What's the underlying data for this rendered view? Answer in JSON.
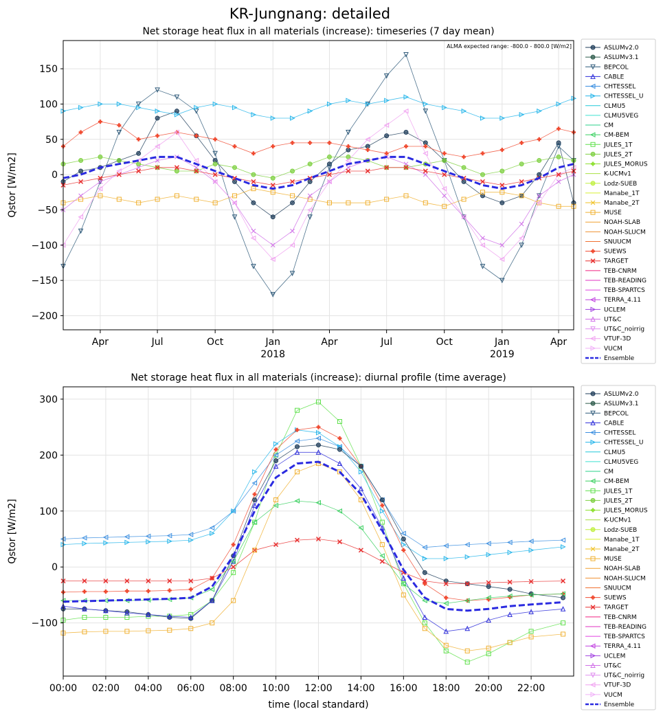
{
  "figure_title": "KR-Jungnang: detailed",
  "colors": {
    "ASLUMv2.0": "#1f3d5a",
    "ASLUMv3.1": "#2c5a4a",
    "BEPCOL": "#2f5a7a",
    "CABLE": "#2b2bd9",
    "CHTESSEL": "#3a8ee0",
    "CHTESSEL_U": "#24b5ea",
    "CLMU5": "#20c8d8",
    "CLMU5VEG": "#3de0d0",
    "CM": "#28d08a",
    "CM-BEM": "#3ad060",
    "JULES_1T": "#5ee04a",
    "JULES_2T": "#7ed040",
    "JULES_MORUS": "#8ee030",
    "K-UCMv1": "#a8e040",
    "Lodz-SUEB": "#c0f040",
    "Manabe_1T": "#d8f030",
    "Manabe_2T": "#f0c020",
    "MUSE": "#f0b030",
    "NOAH-SLAB": "#f0a030",
    "NOAH-SLUCM": "#f09030",
    "SNUUCM": "#f07030",
    "SUEWS": "#f04a30",
    "TARGET": "#e83030",
    "TEB-CNRM": "#f02080",
    "TEB-READING": "#e030c0",
    "TEB-SPARTCS": "#e040e0",
    "TERRA_4.11": "#c040e0",
    "UCLEM": "#a040e0",
    "UT&C": "#d070e8",
    "UT&C_noirrig": "#e090f0",
    "VTUF-3D": "#f0a0f0",
    "VUCM": "#f0b0f8",
    "Ensemble": "#2a2ae0"
  },
  "chart_data": [
    {
      "type": "line",
      "title": "Net storage heat flux in all materials (increase): timeseries (7 day mean)",
      "ylabel": "Qstor [W/m2]",
      "annotation": "ALMA expected range: -800.0 - 800.0 [W/m2]",
      "ylim": [
        -220,
        190
      ],
      "yticks": [
        -200,
        -150,
        -100,
        -50,
        0,
        50,
        100,
        150
      ],
      "xlim": [
        "2017-02-01",
        "2019-04-25"
      ],
      "xticks": [
        {
          "date": "2017-04-01",
          "label": "Apr",
          "sub": ""
        },
        {
          "date": "2017-07-01",
          "label": "Jul",
          "sub": ""
        },
        {
          "date": "2017-10-01",
          "label": "Oct",
          "sub": ""
        },
        {
          "date": "2018-01-01",
          "label": "Jan",
          "sub": "2018"
        },
        {
          "date": "2018-04-01",
          "label": "Apr",
          "sub": ""
        },
        {
          "date": "2018-07-01",
          "label": "Jul",
          "sub": ""
        },
        {
          "date": "2018-10-01",
          "label": "Oct",
          "sub": ""
        },
        {
          "date": "2019-01-01",
          "label": "Jan",
          "sub": "2019"
        },
        {
          "date": "2019-04-01",
          "label": "Apr",
          "sub": ""
        }
      ],
      "x_approx": [
        "2017-02-01",
        "2017-03-01",
        "2017-04-01",
        "2017-05-01",
        "2017-06-01",
        "2017-07-01",
        "2017-08-01",
        "2017-09-01",
        "2017-10-01",
        "2017-11-01",
        "2017-12-01",
        "2018-01-01",
        "2018-02-01",
        "2018-03-01",
        "2018-04-01",
        "2018-05-01",
        "2018-06-01",
        "2018-07-01",
        "2018-08-01",
        "2018-09-01",
        "2018-10-01",
        "2018-11-01",
        "2018-12-01",
        "2019-01-01",
        "2019-02-01",
        "2019-03-01",
        "2019-04-01",
        "2019-04-25"
      ],
      "series": [
        {
          "name": "ASLUMv2.0",
          "marker": "o",
          "values": [
            -10,
            5,
            10,
            20,
            30,
            80,
            90,
            55,
            20,
            -10,
            -40,
            -60,
            -40,
            -10,
            15,
            35,
            40,
            55,
            60,
            45,
            20,
            -10,
            -30,
            -40,
            -30,
            0,
            45,
            -40
          ]
        },
        {
          "name": "BEPCOL",
          "marker": "v",
          "values": [
            -130,
            -80,
            -10,
            60,
            100,
            120,
            110,
            90,
            30,
            -60,
            -130,
            -170,
            -140,
            -60,
            10,
            60,
            100,
            140,
            170,
            90,
            20,
            -60,
            -130,
            -150,
            -100,
            -30,
            40,
            20
          ]
        },
        {
          "name": "CHTESSEL_U",
          "marker": ">",
          "values": [
            90,
            95,
            100,
            100,
            95,
            90,
            85,
            95,
            100,
            95,
            85,
            80,
            80,
            90,
            100,
            105,
            100,
            105,
            110,
            100,
            95,
            90,
            80,
            80,
            85,
            90,
            100,
            108
          ]
        },
        {
          "name": "SUEWS",
          "marker": "P",
          "values": [
            40,
            60,
            75,
            70,
            50,
            55,
            60,
            55,
            50,
            40,
            30,
            40,
            45,
            45,
            45,
            40,
            35,
            30,
            40,
            40,
            30,
            25,
            30,
            35,
            45,
            50,
            65,
            60
          ]
        },
        {
          "name": "MUSE",
          "marker": "s",
          "values": [
            -40,
            -35,
            -30,
            -35,
            -40,
            -35,
            -30,
            -35,
            -40,
            -30,
            -20,
            -25,
            -30,
            -35,
            -40,
            -40,
            -40,
            -35,
            -30,
            -40,
            -45,
            -35,
            -25,
            -25,
            -30,
            -40,
            -45,
            -45
          ]
        },
        {
          "name": "JULES_2T",
          "marker": "o",
          "values": [
            15,
            20,
            25,
            20,
            15,
            10,
            5,
            5,
            15,
            10,
            0,
            -5,
            5,
            15,
            25,
            25,
            20,
            10,
            10,
            15,
            20,
            10,
            0,
            5,
            15,
            20,
            25,
            20
          ]
        },
        {
          "name": "UT&C",
          "marker": "x",
          "values": [
            -50,
            -30,
            -10,
            0,
            10,
            20,
            25,
            10,
            -10,
            -40,
            -80,
            -100,
            -80,
            -30,
            -10,
            10,
            20,
            25,
            15,
            0,
            -30,
            -60,
            -90,
            -100,
            -70,
            -30,
            -10,
            0
          ]
        },
        {
          "name": "VTUF-3D",
          "marker": "<",
          "values": [
            -100,
            -60,
            -20,
            5,
            20,
            40,
            60,
            20,
            -10,
            -40,
            -90,
            -120,
            -100,
            -50,
            -10,
            20,
            50,
            70,
            90,
            30,
            -20,
            -60,
            -100,
            -120,
            -90,
            -40,
            0,
            10
          ]
        },
        {
          "name": "TARGET",
          "marker": "X",
          "values": [
            -15,
            -10,
            -5,
            0,
            5,
            10,
            10,
            5,
            0,
            -5,
            -10,
            -15,
            -10,
            -5,
            0,
            5,
            5,
            10,
            10,
            5,
            0,
            -5,
            -10,
            -15,
            -10,
            -5,
            0,
            5
          ]
        },
        {
          "name": "Ensemble",
          "marker": "",
          "values": [
            -5,
            0,
            10,
            15,
            20,
            25,
            25,
            15,
            5,
            -5,
            -15,
            -20,
            -15,
            -5,
            5,
            15,
            20,
            25,
            25,
            15,
            5,
            -5,
            -15,
            -20,
            -15,
            -5,
            10,
            15
          ]
        }
      ],
      "legend": [
        "ASLUMv2.0",
        "ASLUMv3.1",
        "BEPCOL",
        "CABLE",
        "CHTESSEL",
        "CHTESSEL_U",
        "CLMU5",
        "CLMU5VEG",
        "CM",
        "CM-BEM",
        "JULES_1T",
        "JULES_2T",
        "JULES_MORUS",
        "K-UCMv1",
        "Lodz-SUEB",
        "Manabe_1T",
        "Manabe_2T",
        "MUSE",
        "NOAH-SLAB",
        "NOAH-SLUCM",
        "SNUUCM",
        "SUEWS",
        "TARGET",
        "TEB-CNRM",
        "TEB-READING",
        "TEB-SPARTCS",
        "TERRA_4.11",
        "UCLEM",
        "UT&C",
        "UT&C_noirrig",
        "VTUF-3D",
        "VUCM",
        "Ensemble"
      ],
      "legend_position": "outside-right",
      "grid": true
    },
    {
      "type": "line",
      "title": "Net storage heat flux in all materials (increase): diurnal profile (time average)",
      "ylabel": "Qstor [W/m2]",
      "xlabel": "time (local standard)",
      "ylim": [
        -195,
        322
      ],
      "yticks": [
        -100,
        0,
        100,
        200,
        300
      ],
      "xlim": [
        0,
        24
      ],
      "xticks": [
        {
          "value": 0,
          "label": "00:00"
        },
        {
          "value": 2,
          "label": "02:00"
        },
        {
          "value": 4,
          "label": "04:00"
        },
        {
          "value": 6,
          "label": "06:00"
        },
        {
          "value": 8,
          "label": "08:00"
        },
        {
          "value": 10,
          "label": "10:00"
        },
        {
          "value": 12,
          "label": "12:00"
        },
        {
          "value": 14,
          "label": "14:00"
        },
        {
          "value": 16,
          "label": "16:00"
        },
        {
          "value": 18,
          "label": "18:00"
        },
        {
          "value": 20,
          "label": "20:00"
        },
        {
          "value": 22,
          "label": "22:00"
        }
      ],
      "x_hours": [
        0,
        1,
        2,
        3,
        4,
        5,
        6,
        7,
        8,
        9,
        10,
        11,
        12,
        13,
        14,
        15,
        16,
        17,
        18,
        19,
        20,
        21,
        22,
        23.5
      ],
      "series": [
        {
          "name": "JULES_1T",
          "marker": "s",
          "values": [
            -95,
            -90,
            -90,
            -90,
            -88,
            -88,
            -85,
            -60,
            -10,
            80,
            200,
            280,
            295,
            260,
            180,
            80,
            -30,
            -100,
            -150,
            -170,
            -155,
            -135,
            -115,
            -100
          ]
        },
        {
          "name": "CHTESSEL",
          "marker": "<",
          "values": [
            50,
            52,
            53,
            54,
            55,
            56,
            58,
            70,
            100,
            150,
            200,
            225,
            230,
            215,
            180,
            120,
            60,
            35,
            38,
            40,
            42,
            44,
            46,
            48
          ]
        },
        {
          "name": "CHTESSEL_U",
          "marker": ">",
          "values": [
            40,
            42,
            43,
            44,
            45,
            46,
            48,
            60,
            100,
            170,
            220,
            245,
            240,
            215,
            170,
            100,
            40,
            15,
            15,
            18,
            22,
            26,
            30,
            36
          ]
        },
        {
          "name": "SUEWS",
          "marker": "P",
          "values": [
            -45,
            -44,
            -44,
            -43,
            -43,
            -42,
            -40,
            -20,
            40,
            130,
            210,
            245,
            250,
            230,
            180,
            110,
            30,
            -30,
            -55,
            -60,
            -58,
            -54,
            -50,
            -48
          ]
        },
        {
          "name": "ASLUMv2.0",
          "marker": "o",
          "values": [
            -75,
            -75,
            -78,
            -80,
            -85,
            -90,
            -92,
            -60,
            20,
            120,
            190,
            215,
            218,
            210,
            180,
            120,
            50,
            -10,
            -25,
            -30,
            -35,
            -40,
            -48,
            -55
          ]
        },
        {
          "name": "CABLE",
          "marker": "^",
          "values": [
            -70,
            -75,
            -78,
            -82,
            -85,
            -88,
            -90,
            -60,
            10,
            110,
            180,
            205,
            205,
            185,
            140,
            70,
            -20,
            -90,
            -115,
            -110,
            -95,
            -85,
            -80,
            -75
          ]
        },
        {
          "name": "TARGET",
          "marker": "X",
          "values": [
            -25,
            -25,
            -25,
            -25,
            -25,
            -25,
            -25,
            -20,
            0,
            30,
            40,
            48,
            50,
            45,
            30,
            10,
            -10,
            -25,
            -30,
            -30,
            -28,
            -27,
            -26,
            -25
          ]
        },
        {
          "name": "MUSE",
          "marker": "s",
          "values": [
            -118,
            -116,
            -115,
            -115,
            -114,
            -113,
            -110,
            -100,
            -60,
            30,
            120,
            170,
            185,
            170,
            120,
            40,
            -50,
            -110,
            -140,
            -150,
            -145,
            -135,
            -125,
            -120
          ]
        },
        {
          "name": "CM-BEM",
          "marker": "<",
          "values": [
            -60,
            -60,
            -60,
            -60,
            -59,
            -58,
            -55,
            -40,
            10,
            80,
            110,
            118,
            115,
            100,
            70,
            20,
            -30,
            -60,
            -65,
            -60,
            -55,
            -52,
            -50,
            -48
          ]
        },
        {
          "name": "Ensemble",
          "marker": "",
          "values": [
            -62,
            -61,
            -60,
            -59,
            -58,
            -57,
            -55,
            -35,
            20,
            100,
            160,
            185,
            188,
            170,
            130,
            65,
            -5,
            -55,
            -75,
            -78,
            -75,
            -70,
            -67,
            -63
          ]
        }
      ],
      "legend": [
        "ASLUMv2.0",
        "ASLUMv3.1",
        "BEPCOL",
        "CABLE",
        "CHTESSEL",
        "CHTESSEL_U",
        "CLMU5",
        "CLMU5VEG",
        "CM",
        "CM-BEM",
        "JULES_1T",
        "JULES_2T",
        "JULES_MORUS",
        "K-UCMv1",
        "Lodz-SUEB",
        "Manabe_1T",
        "Manabe_2T",
        "MUSE",
        "NOAH-SLAB",
        "NOAH-SLUCM",
        "SNUUCM",
        "SUEWS",
        "TARGET",
        "TEB-CNRM",
        "TEB-READING",
        "TEB-SPARTCS",
        "TERRA_4.11",
        "UCLEM",
        "UT&C",
        "UT&C_noirrig",
        "VTUF-3D",
        "VUCM",
        "Ensemble"
      ],
      "legend_position": "outside-right",
      "grid": true
    }
  ]
}
